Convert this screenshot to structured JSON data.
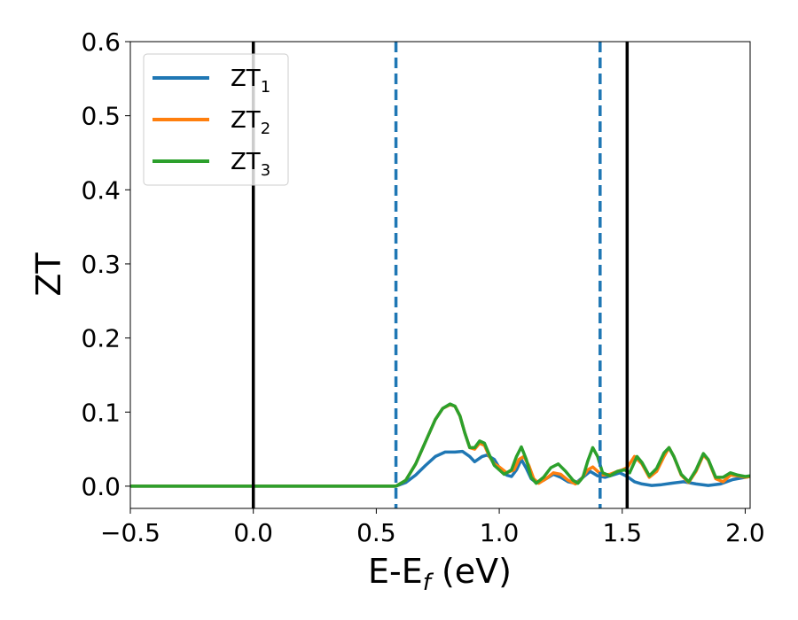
{
  "chart_data": {
    "type": "line",
    "xlabel": "E-E",
    "xlabel_sub": "f",
    "xlabel_unit": " (eV)",
    "ylabel": "ZT",
    "xlim": [
      -0.5,
      2.02
    ],
    "ylim": [
      -0.03,
      0.6
    ],
    "xticks": [
      -0.5,
      0.0,
      0.5,
      1.0,
      1.5,
      2.0
    ],
    "xtick_labels": [
      "−0.5",
      "0.0",
      "0.5",
      "1.0",
      "1.5",
      "2.0"
    ],
    "yticks": [
      0.0,
      0.1,
      0.2,
      0.3,
      0.4,
      0.5,
      0.6
    ],
    "ytick_labels": [
      "0.0",
      "0.1",
      "0.2",
      "0.3",
      "0.4",
      "0.5",
      "0.6"
    ],
    "grid": false,
    "legend_position": "top-left",
    "vlines": [
      {
        "x": 0.0,
        "style": "solid",
        "color": "#000000"
      },
      {
        "x": 1.52,
        "style": "solid",
        "color": "#000000"
      },
      {
        "x": 0.58,
        "style": "dashed",
        "color": "#1f77b4"
      },
      {
        "x": 1.41,
        "style": "dashed",
        "color": "#1f77b4"
      }
    ],
    "series": [
      {
        "name": "ZT",
        "name_sub": "1",
        "color": "#1f77b4",
        "points": [
          [
            -0.5,
            0
          ],
          [
            0.5,
            0
          ],
          [
            0.58,
            0.0
          ],
          [
            0.62,
            0.005
          ],
          [
            0.66,
            0.015
          ],
          [
            0.7,
            0.028
          ],
          [
            0.74,
            0.04
          ],
          [
            0.78,
            0.046
          ],
          [
            0.82,
            0.046
          ],
          [
            0.85,
            0.047
          ],
          [
            0.88,
            0.04
          ],
          [
            0.9,
            0.033
          ],
          [
            0.93,
            0.04
          ],
          [
            0.95,
            0.042
          ],
          [
            0.98,
            0.036
          ],
          [
            1.0,
            0.025
          ],
          [
            1.03,
            0.015
          ],
          [
            1.05,
            0.013
          ],
          [
            1.07,
            0.022
          ],
          [
            1.09,
            0.036
          ],
          [
            1.11,
            0.024
          ],
          [
            1.13,
            0.01
          ],
          [
            1.15,
            0.005
          ],
          [
            1.18,
            0.008
          ],
          [
            1.22,
            0.016
          ],
          [
            1.25,
            0.012
          ],
          [
            1.28,
            0.006
          ],
          [
            1.31,
            0.004
          ],
          [
            1.34,
            0.012
          ],
          [
            1.37,
            0.02
          ],
          [
            1.4,
            0.014
          ],
          [
            1.43,
            0.012
          ],
          [
            1.46,
            0.015
          ],
          [
            1.49,
            0.018
          ],
          [
            1.52,
            0.013
          ],
          [
            1.55,
            0.006
          ],
          [
            1.58,
            0.003
          ],
          [
            1.62,
            0.001
          ],
          [
            1.66,
            0.002
          ],
          [
            1.7,
            0.004
          ],
          [
            1.75,
            0.006
          ],
          [
            1.8,
            0.003
          ],
          [
            1.85,
            0.001
          ],
          [
            1.9,
            0.003
          ],
          [
            1.95,
            0.009
          ],
          [
            2.0,
            0.012
          ],
          [
            2.02,
            0.013
          ]
        ]
      },
      {
        "name": "ZT",
        "name_sub": "2",
        "color": "#ff7f0e",
        "points": [
          [
            -0.5,
            0
          ],
          [
            0.5,
            0
          ],
          [
            0.58,
            0.0
          ],
          [
            0.62,
            0.008
          ],
          [
            0.66,
            0.03
          ],
          [
            0.7,
            0.06
          ],
          [
            0.74,
            0.09
          ],
          [
            0.77,
            0.105
          ],
          [
            0.8,
            0.11
          ],
          [
            0.82,
            0.108
          ],
          [
            0.84,
            0.095
          ],
          [
            0.86,
            0.072
          ],
          [
            0.88,
            0.052
          ],
          [
            0.9,
            0.05
          ],
          [
            0.92,
            0.058
          ],
          [
            0.94,
            0.055
          ],
          [
            0.96,
            0.04
          ],
          [
            0.98,
            0.03
          ],
          [
            1.0,
            0.026
          ],
          [
            1.03,
            0.018
          ],
          [
            1.06,
            0.022
          ],
          [
            1.08,
            0.036
          ],
          [
            1.1,
            0.04
          ],
          [
            1.12,
            0.028
          ],
          [
            1.14,
            0.01
          ],
          [
            1.16,
            0.004
          ],
          [
            1.19,
            0.01
          ],
          [
            1.22,
            0.018
          ],
          [
            1.25,
            0.016
          ],
          [
            1.28,
            0.008
          ],
          [
            1.31,
            0.003
          ],
          [
            1.33,
            0.008
          ],
          [
            1.36,
            0.022
          ],
          [
            1.38,
            0.026
          ],
          [
            1.4,
            0.02
          ],
          [
            1.42,
            0.015
          ],
          [
            1.45,
            0.016
          ],
          [
            1.48,
            0.02
          ],
          [
            1.5,
            0.022
          ],
          [
            1.52,
            0.025
          ],
          [
            1.55,
            0.04
          ],
          [
            1.58,
            0.03
          ],
          [
            1.61,
            0.012
          ],
          [
            1.64,
            0.02
          ],
          [
            1.67,
            0.04
          ],
          [
            1.69,
            0.052
          ],
          [
            1.71,
            0.04
          ],
          [
            1.74,
            0.015
          ],
          [
            1.77,
            0.005
          ],
          [
            1.8,
            0.02
          ],
          [
            1.83,
            0.042
          ],
          [
            1.85,
            0.035
          ],
          [
            1.88,
            0.01
          ],
          [
            1.91,
            0.006
          ],
          [
            1.94,
            0.015
          ],
          [
            1.97,
            0.014
          ],
          [
            2.0,
            0.012
          ],
          [
            2.02,
            0.013
          ]
        ]
      },
      {
        "name": "ZT",
        "name_sub": "3",
        "color": "#2ca02c",
        "points": [
          [
            -0.5,
            0
          ],
          [
            0.5,
            0
          ],
          [
            0.58,
            0.0
          ],
          [
            0.62,
            0.008
          ],
          [
            0.66,
            0.03
          ],
          [
            0.7,
            0.06
          ],
          [
            0.74,
            0.09
          ],
          [
            0.77,
            0.105
          ],
          [
            0.8,
            0.111
          ],
          [
            0.82,
            0.108
          ],
          [
            0.84,
            0.095
          ],
          [
            0.86,
            0.072
          ],
          [
            0.88,
            0.052
          ],
          [
            0.9,
            0.052
          ],
          [
            0.92,
            0.061
          ],
          [
            0.94,
            0.058
          ],
          [
            0.96,
            0.042
          ],
          [
            0.98,
            0.028
          ],
          [
            1.0,
            0.022
          ],
          [
            1.02,
            0.016
          ],
          [
            1.05,
            0.022
          ],
          [
            1.07,
            0.04
          ],
          [
            1.09,
            0.053
          ],
          [
            1.11,
            0.036
          ],
          [
            1.13,
            0.012
          ],
          [
            1.15,
            0.004
          ],
          [
            1.18,
            0.012
          ],
          [
            1.21,
            0.025
          ],
          [
            1.24,
            0.03
          ],
          [
            1.27,
            0.02
          ],
          [
            1.3,
            0.008
          ],
          [
            1.32,
            0.004
          ],
          [
            1.34,
            0.012
          ],
          [
            1.36,
            0.034
          ],
          [
            1.38,
            0.052
          ],
          [
            1.4,
            0.04
          ],
          [
            1.42,
            0.018
          ],
          [
            1.45,
            0.014
          ],
          [
            1.48,
            0.02
          ],
          [
            1.51,
            0.022
          ],
          [
            1.53,
            0.018
          ],
          [
            1.56,
            0.04
          ],
          [
            1.58,
            0.032
          ],
          [
            1.61,
            0.014
          ],
          [
            1.64,
            0.024
          ],
          [
            1.67,
            0.045
          ],
          [
            1.69,
            0.052
          ],
          [
            1.71,
            0.04
          ],
          [
            1.74,
            0.016
          ],
          [
            1.77,
            0.006
          ],
          [
            1.8,
            0.022
          ],
          [
            1.83,
            0.044
          ],
          [
            1.85,
            0.036
          ],
          [
            1.88,
            0.012
          ],
          [
            1.91,
            0.012
          ],
          [
            1.94,
            0.018
          ],
          [
            1.97,
            0.015
          ],
          [
            2.0,
            0.013
          ],
          [
            2.02,
            0.014
          ]
        ]
      }
    ]
  }
}
